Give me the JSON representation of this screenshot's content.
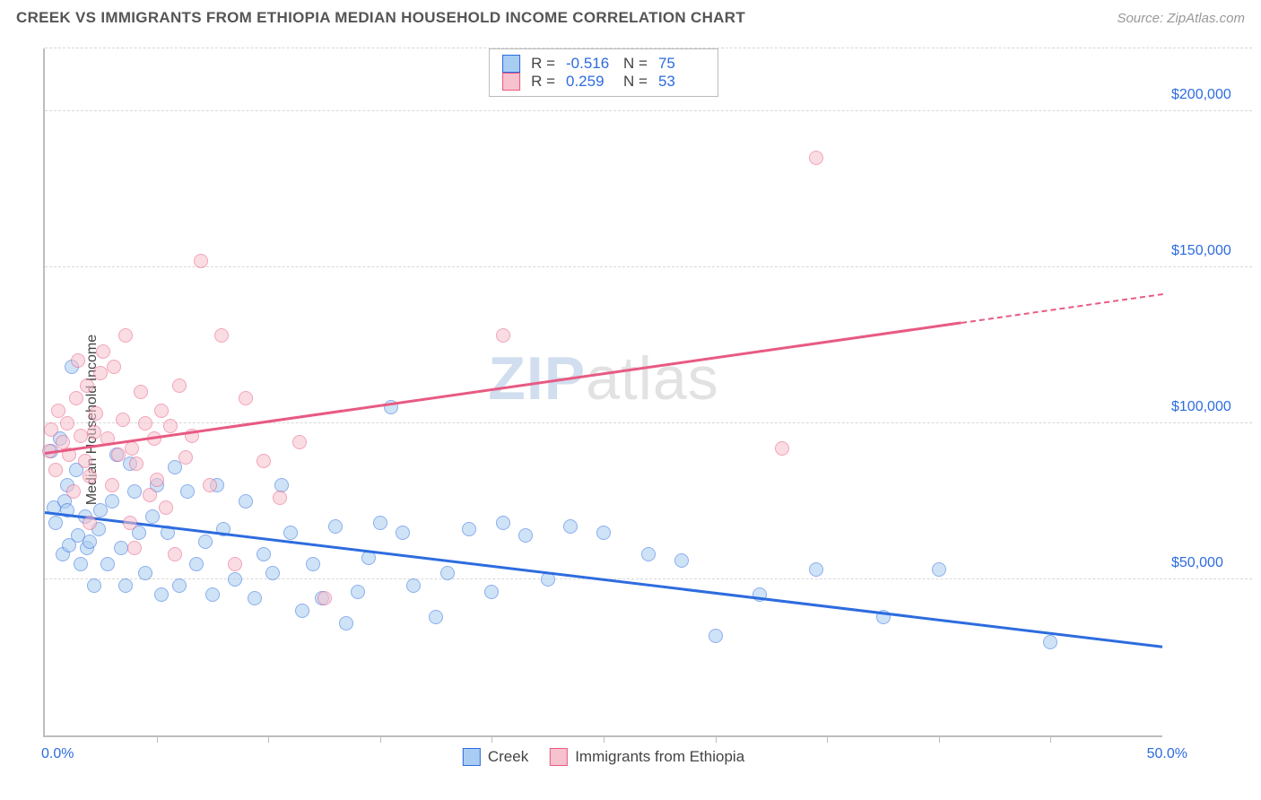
{
  "header": {
    "title": "CREEK VS IMMIGRANTS FROM ETHIOPIA MEDIAN HOUSEHOLD INCOME CORRELATION CHART",
    "source": "Source: ZipAtlas.com"
  },
  "chart": {
    "type": "scatter",
    "y_label": "Median Household Income",
    "xlim": [
      0,
      50
    ],
    "ylim": [
      0,
      220000
    ],
    "x_tick_positions": [
      5,
      10,
      15,
      20,
      25,
      30,
      35,
      40,
      45
    ],
    "x_min_label": "0.0%",
    "x_max_label": "50.0%",
    "y_ticks": [
      {
        "value": 50000,
        "label": "$50,000"
      },
      {
        "value": 100000,
        "label": "$100,000"
      },
      {
        "value": 150000,
        "label": "$150,000"
      },
      {
        "value": 200000,
        "label": "$200,000"
      }
    ],
    "grid_color": "#d8d8d8",
    "axis_color": "#bdbdbd",
    "background_color": "#ffffff",
    "marker_radius": 8,
    "marker_opacity": 0.55,
    "watermark": {
      "z": "ZIP",
      "rest": "atlas"
    },
    "series": [
      {
        "name": "Creek",
        "legend_label": "Creek",
        "fill": "#a9cdf2",
        "stroke": "#2d6cdf",
        "r_value": "-0.516",
        "n_value": "75",
        "trend": {
          "x1": 0,
          "y1": 71000,
          "x2": 50,
          "y2": 28000,
          "color": "#2d6cdf",
          "dash_after": 50
        },
        "points": [
          [
            0.3,
            91000
          ],
          [
            0.4,
            73000
          ],
          [
            0.5,
            68000
          ],
          [
            0.7,
            95000
          ],
          [
            0.8,
            58000
          ],
          [
            0.9,
            75000
          ],
          [
            1.0,
            72000
          ],
          [
            1.1,
            61000
          ],
          [
            1.2,
            118000
          ],
          [
            1.4,
            85000
          ],
          [
            1.5,
            64000
          ],
          [
            1.6,
            55000
          ],
          [
            1.8,
            70000
          ],
          [
            1.9,
            60000
          ],
          [
            2.0,
            62000
          ],
          [
            2.2,
            48000
          ],
          [
            2.4,
            66000
          ],
          [
            2.5,
            72000
          ],
          [
            2.8,
            55000
          ],
          [
            3.0,
            75000
          ],
          [
            3.2,
            90000
          ],
          [
            3.4,
            60000
          ],
          [
            3.6,
            48000
          ],
          [
            3.8,
            87000
          ],
          [
            4.0,
            78000
          ],
          [
            4.2,
            65000
          ],
          [
            4.5,
            52000
          ],
          [
            4.8,
            70000
          ],
          [
            5.0,
            80000
          ],
          [
            5.2,
            45000
          ],
          [
            5.5,
            65000
          ],
          [
            5.8,
            86000
          ],
          [
            6.0,
            48000
          ],
          [
            6.4,
            78000
          ],
          [
            6.8,
            55000
          ],
          [
            7.2,
            62000
          ],
          [
            7.5,
            45000
          ],
          [
            7.7,
            80000
          ],
          [
            8.0,
            66000
          ],
          [
            8.5,
            50000
          ],
          [
            9.0,
            75000
          ],
          [
            9.4,
            44000
          ],
          [
            9.8,
            58000
          ],
          [
            10.2,
            52000
          ],
          [
            10.6,
            80000
          ],
          [
            11.0,
            65000
          ],
          [
            11.5,
            40000
          ],
          [
            12.0,
            55000
          ],
          [
            12.4,
            44000
          ],
          [
            13.0,
            67000
          ],
          [
            13.5,
            36000
          ],
          [
            14.0,
            46000
          ],
          [
            14.5,
            57000
          ],
          [
            15.0,
            68000
          ],
          [
            15.5,
            105000
          ],
          [
            16.0,
            65000
          ],
          [
            16.5,
            48000
          ],
          [
            17.5,
            38000
          ],
          [
            18.0,
            52000
          ],
          [
            19.0,
            66000
          ],
          [
            20.0,
            46000
          ],
          [
            20.5,
            68000
          ],
          [
            21.5,
            64000
          ],
          [
            22.5,
            50000
          ],
          [
            23.5,
            67000
          ],
          [
            25.0,
            65000
          ],
          [
            27.0,
            58000
          ],
          [
            28.5,
            56000
          ],
          [
            30.0,
            32000
          ],
          [
            32.0,
            45000
          ],
          [
            34.5,
            53000
          ],
          [
            37.5,
            38000
          ],
          [
            40.0,
            53000
          ],
          [
            45.0,
            30000
          ],
          [
            1.0,
            80000
          ]
        ]
      },
      {
        "name": "Immigrants from Ethiopia",
        "legend_label": "Immigrants from Ethiopia",
        "fill": "#f7c1cd",
        "stroke": "#e85a82",
        "r_value": "0.259",
        "n_value": "53",
        "trend": {
          "x1": 0,
          "y1": 90000,
          "x2": 50,
          "y2": 141000,
          "color": "#e85a82",
          "dash_after": 41
        },
        "points": [
          [
            0.2,
            91000
          ],
          [
            0.3,
            98000
          ],
          [
            0.5,
            85000
          ],
          [
            0.6,
            104000
          ],
          [
            0.8,
            94000
          ],
          [
            1.0,
            100000
          ],
          [
            1.1,
            90000
          ],
          [
            1.3,
            78000
          ],
          [
            1.4,
            108000
          ],
          [
            1.5,
            120000
          ],
          [
            1.6,
            96000
          ],
          [
            1.8,
            88000
          ],
          [
            1.9,
            112000
          ],
          [
            2.0,
            83000
          ],
          [
            2.2,
            97000
          ],
          [
            2.3,
            103000
          ],
          [
            2.5,
            116000
          ],
          [
            2.6,
            123000
          ],
          [
            2.8,
            95000
          ],
          [
            3.0,
            80000
          ],
          [
            3.1,
            118000
          ],
          [
            3.3,
            90000
          ],
          [
            3.5,
            101000
          ],
          [
            3.6,
            128000
          ],
          [
            3.9,
            92000
          ],
          [
            4.0,
            60000
          ],
          [
            4.1,
            87000
          ],
          [
            4.3,
            110000
          ],
          [
            4.5,
            100000
          ],
          [
            4.7,
            77000
          ],
          [
            4.9,
            95000
          ],
          [
            5.0,
            82000
          ],
          [
            5.2,
            104000
          ],
          [
            5.4,
            73000
          ],
          [
            5.6,
            99000
          ],
          [
            5.8,
            58000
          ],
          [
            6.0,
            112000
          ],
          [
            6.3,
            89000
          ],
          [
            6.6,
            96000
          ],
          [
            7.0,
            152000
          ],
          [
            7.4,
            80000
          ],
          [
            7.9,
            128000
          ],
          [
            8.5,
            55000
          ],
          [
            9.0,
            108000
          ],
          [
            9.8,
            88000
          ],
          [
            10.5,
            76000
          ],
          [
            11.4,
            94000
          ],
          [
            12.5,
            44000
          ],
          [
            20.5,
            128000
          ],
          [
            33.0,
            92000
          ],
          [
            34.5,
            185000
          ],
          [
            2.0,
            68000
          ],
          [
            3.8,
            68000
          ]
        ]
      }
    ],
    "legend_top": {
      "r_label": "R =",
      "n_label": "N ="
    }
  }
}
